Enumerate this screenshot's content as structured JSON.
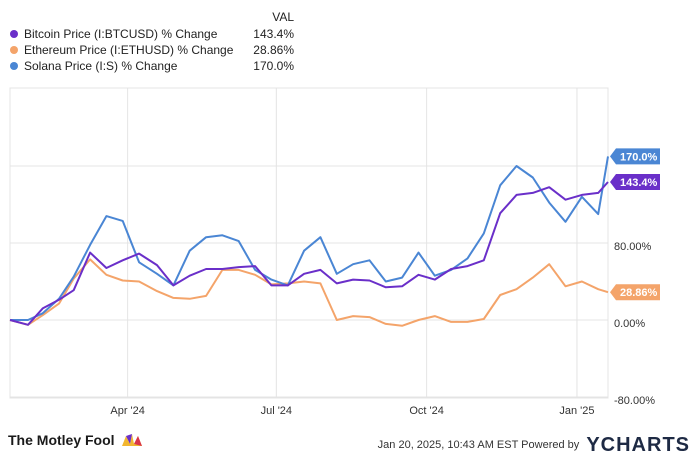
{
  "legend": {
    "header": "VAL",
    "items": [
      {
        "name": "Bitcoin Price (I:BTCUSD) % Change",
        "value": "143.4%",
        "color": "#6a2fc9"
      },
      {
        "name": "Ethereum Price (I:ETHUSD) % Change",
        "value": "28.86%",
        "color": "#f4a46a"
      },
      {
        "name": "Solana Price (I:S) % Change",
        "value": "170.0%",
        "color": "#4a86d4"
      }
    ]
  },
  "chart_data": {
    "type": "line",
    "x_tick_labels": [
      "Apr '24",
      "Jul '24",
      "Oct '24",
      "Jan '25"
    ],
    "y_tick_labels": [
      "-80.00%",
      "0.00%",
      "80.00%"
    ],
    "ylim": [
      -80,
      160
    ],
    "grid": true,
    "x_start": "2024-01-20",
    "x_end": "2025-01-20",
    "end_labels": [
      "170.0%",
      "143.4%",
      "28.86%"
    ],
    "series": [
      {
        "name": "Bitcoin Price (I:BTCUSD) % Change",
        "color": "#6a2fc9",
        "x": [
          "2024-01-20",
          "2024-01-31",
          "2024-02-09",
          "2024-02-19",
          "2024-02-28",
          "2024-03-09",
          "2024-03-19",
          "2024-03-29",
          "2024-04-08",
          "2024-04-19",
          "2024-04-29",
          "2024-05-09",
          "2024-05-19",
          "2024-05-29",
          "2024-06-08",
          "2024-06-18",
          "2024-06-28",
          "2024-07-08",
          "2024-07-18",
          "2024-07-28",
          "2024-08-07",
          "2024-08-17",
          "2024-08-27",
          "2024-09-06",
          "2024-09-16",
          "2024-09-26",
          "2024-10-06",
          "2024-10-16",
          "2024-10-26",
          "2024-11-05",
          "2024-11-15",
          "2024-11-25",
          "2024-12-05",
          "2024-12-15",
          "2024-12-25",
          "2025-01-04",
          "2025-01-14",
          "2025-01-20"
        ],
        "y": [
          0,
          -5,
          12,
          21,
          31,
          70,
          54,
          62,
          69,
          57,
          36,
          46,
          53,
          53,
          55,
          56,
          36,
          36,
          48,
          52,
          38,
          42,
          41,
          34,
          35,
          47,
          42,
          53,
          56,
          62,
          111,
          130,
          132,
          138,
          125,
          130,
          132,
          143.4
        ]
      },
      {
        "name": "Ethereum Price (I:ETHUSD) % Change",
        "color": "#f4a46a",
        "x": [
          "2024-01-20",
          "2024-01-31",
          "2024-02-09",
          "2024-02-19",
          "2024-02-28",
          "2024-03-09",
          "2024-03-19",
          "2024-03-29",
          "2024-04-08",
          "2024-04-19",
          "2024-04-29",
          "2024-05-09",
          "2024-05-19",
          "2024-05-29",
          "2024-06-08",
          "2024-06-18",
          "2024-06-28",
          "2024-07-08",
          "2024-07-18",
          "2024-07-28",
          "2024-08-07",
          "2024-08-17",
          "2024-08-27",
          "2024-09-06",
          "2024-09-16",
          "2024-09-26",
          "2024-10-06",
          "2024-10-16",
          "2024-10-26",
          "2024-11-05",
          "2024-11-15",
          "2024-11-25",
          "2024-12-05",
          "2024-12-15",
          "2024-12-25",
          "2025-01-04",
          "2025-01-14",
          "2025-01-20"
        ],
        "y": [
          0,
          -5,
          5,
          17,
          43,
          63,
          47,
          41,
          40,
          30,
          23,
          22,
          25,
          52,
          52,
          47,
          37,
          38,
          40,
          38,
          0,
          4,
          3,
          -4,
          -6,
          0,
          4,
          -2,
          -2,
          1,
          26,
          32,
          44,
          58,
          35,
          40,
          32,
          28.86
        ]
      },
      {
        "name": "Solana Price (I:S) % Change",
        "color": "#4a86d4",
        "x": [
          "2024-01-20",
          "2024-01-31",
          "2024-02-09",
          "2024-02-19",
          "2024-02-28",
          "2024-03-09",
          "2024-03-19",
          "2024-03-29",
          "2024-04-08",
          "2024-04-19",
          "2024-04-29",
          "2024-05-09",
          "2024-05-19",
          "2024-05-29",
          "2024-06-08",
          "2024-06-18",
          "2024-06-28",
          "2024-07-08",
          "2024-07-18",
          "2024-07-28",
          "2024-08-07",
          "2024-08-17",
          "2024-08-27",
          "2024-09-06",
          "2024-09-16",
          "2024-09-26",
          "2024-10-06",
          "2024-10-16",
          "2024-10-26",
          "2024-11-05",
          "2024-11-15",
          "2024-11-25",
          "2024-12-05",
          "2024-12-15",
          "2024-12-25",
          "2025-01-04",
          "2025-01-14",
          "2025-01-20"
        ],
        "y": [
          0,
          0,
          7,
          22,
          45,
          78,
          108,
          103,
          60,
          48,
          36,
          72,
          86,
          88,
          82,
          52,
          42,
          36,
          72,
          86,
          48,
          58,
          62,
          40,
          44,
          70,
          46,
          52,
          64,
          90,
          140,
          160,
          148,
          122,
          102,
          128,
          110,
          170
        ]
      }
    ]
  },
  "footer": {
    "logo": "The Motley Fool",
    "timestamp": "Jan 20, 2025, 10:43 AM EST  Powered by",
    "brand": "YCHARTS"
  }
}
